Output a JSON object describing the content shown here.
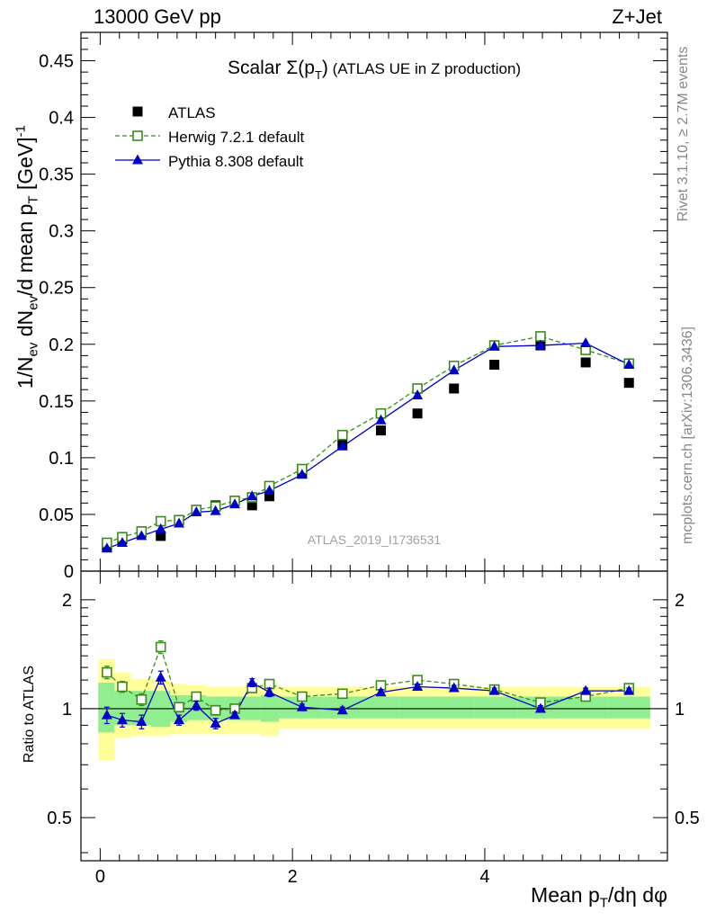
{
  "header": {
    "left": "13000 GeV pp",
    "right": "Z+Jet"
  },
  "side_labels": {
    "rivet": "Rivet 3.1.10, ≥ 2.7M events",
    "mcplots": "mcplots.cern.ch [arXiv:1306.3436]"
  },
  "chart_data": [
    {
      "type": "line",
      "title": "Scalar Σ(p_T) (ATLAS UE in Z production)",
      "watermark": "ATLAS_2019_I1736531",
      "ylabel": "1/N_ev dN_ev/d mean p_T [GeV]^-1",
      "xlim": [
        -0.2,
        5.9
      ],
      "ylim": [
        0,
        0.475
      ],
      "y_ticks": [
        0,
        0.05,
        0.1,
        0.15,
        0.2,
        0.25,
        0.3,
        0.35,
        0.4,
        0.45
      ],
      "y_tick_labels": [
        "0",
        "0.05",
        "0.1",
        "0.15",
        "0.2",
        "0.25",
        "0.3",
        "0.35",
        "0.4",
        "0.45"
      ],
      "legend_position": "top-left",
      "x": [
        0.07,
        0.23,
        0.43,
        0.63,
        0.82,
        1.0,
        1.2,
        1.4,
        1.58,
        1.76,
        2.1,
        2.52,
        2.92,
        3.3,
        3.68,
        4.1,
        4.58,
        5.05,
        5.5
      ],
      "series": [
        {
          "name": "ATLAS",
          "color": "#000000",
          "marker": "filled-square",
          "line": "none",
          "values": [
            0.021,
            0.028,
            0.034,
            0.031,
            0.045,
            0.053,
            0.058,
            0.062,
            0.058,
            0.066,
            0.086,
            0.112,
            0.124,
            0.139,
            0.161,
            0.182,
            0.199,
            0.184,
            0.166
          ]
        },
        {
          "name": "Herwig 7.2.1 default",
          "color": "#3a8a1f",
          "marker": "open-square",
          "line": "dashed",
          "values": [
            0.025,
            0.03,
            0.035,
            0.044,
            0.045,
            0.054,
            0.057,
            0.062,
            0.065,
            0.075,
            0.09,
            0.12,
            0.139,
            0.161,
            0.181,
            0.199,
            0.207,
            0.195,
            0.183
          ]
        },
        {
          "name": "Pythia 8.308 default",
          "color": "#0000cc",
          "marker": "filled-triangle",
          "line": "solid",
          "values": [
            0.02,
            0.025,
            0.031,
            0.037,
            0.042,
            0.052,
            0.053,
            0.059,
            0.066,
            0.071,
            0.085,
            0.11,
            0.133,
            0.155,
            0.177,
            0.198,
            0.199,
            0.201,
            0.182
          ]
        }
      ]
    },
    {
      "type": "line",
      "ylabel": "Ratio to ATLAS",
      "xlabel": "Mean p_T/dη dφ",
      "log_y": true,
      "xlim": [
        -0.2,
        5.9
      ],
      "ylim": [
        0.38,
        2.4
      ],
      "y_ticks": [
        0.5,
        1,
        2
      ],
      "y_tick_labels": [
        "0.5",
        "1",
        "2"
      ],
      "x_ticks": [
        0,
        2,
        4
      ],
      "x_tick_labels": [
        "0",
        "2",
        "4"
      ],
      "band_colors": {
        "stat": "#90ee90",
        "total": "#ffff99"
      },
      "x": [
        0.07,
        0.23,
        0.43,
        0.63,
        0.82,
        1.0,
        1.2,
        1.4,
        1.58,
        1.76,
        2.1,
        2.52,
        2.92,
        3.3,
        3.68,
        4.1,
        4.58,
        5.05,
        5.5
      ],
      "bin_edges": [
        -0.02,
        0.15,
        0.32,
        0.53,
        0.73,
        0.91,
        1.1,
        1.3,
        1.49,
        1.67,
        1.86,
        2.31,
        2.72,
        3.11,
        3.49,
        3.89,
        4.34,
        4.81,
        5.28,
        5.72
      ],
      "stat_band": {
        "lo": [
          0.86,
          0.9,
          0.9,
          0.89,
          0.92,
          0.93,
          0.93,
          0.93,
          0.93,
          0.92,
          0.94,
          0.94,
          0.94,
          0.94,
          0.94,
          0.94,
          0.94,
          0.94,
          0.94
        ],
        "hi": [
          1.18,
          1.12,
          1.12,
          1.12,
          1.09,
          1.09,
          1.08,
          1.08,
          1.08,
          1.09,
          1.08,
          1.08,
          1.08,
          1.08,
          1.08,
          1.08,
          1.08,
          1.08,
          1.08
        ]
      },
      "total_band": {
        "lo": [
          0.72,
          0.83,
          0.84,
          0.84,
          0.85,
          0.85,
          0.85,
          0.85,
          0.85,
          0.84,
          0.88,
          0.88,
          0.88,
          0.88,
          0.88,
          0.88,
          0.88,
          0.88,
          0.88
        ],
        "hi": [
          1.37,
          1.26,
          1.21,
          1.2,
          1.17,
          1.16,
          1.15,
          1.15,
          1.16,
          1.17,
          1.15,
          1.15,
          1.15,
          1.15,
          1.15,
          1.15,
          1.15,
          1.15,
          1.15
        ]
      },
      "series": [
        {
          "name": "Herwig 7.2.1 default",
          "color": "#3a8a1f",
          "marker": "open-square",
          "line": "dashed",
          "values": [
            1.26,
            1.15,
            1.06,
            1.48,
            1.01,
            1.08,
            0.99,
            1.0,
            1.14,
            1.17,
            1.08,
            1.1,
            1.16,
            1.2,
            1.17,
            1.13,
            1.04,
            1.08,
            1.14
          ],
          "errors": [
            0.05,
            0.04,
            0.04,
            0.06,
            0.03,
            0.03,
            0.03,
            0.02,
            0.03,
            0.03,
            0.02,
            0.02,
            0.02,
            0.02,
            0.02,
            0.02,
            0.02,
            0.02,
            0.02
          ]
        },
        {
          "name": "Pythia 8.308 default",
          "color": "#0000cc",
          "marker": "filled-triangle",
          "line": "solid",
          "values": [
            0.96,
            0.93,
            0.92,
            1.22,
            0.93,
            1.02,
            0.91,
            0.96,
            1.18,
            1.11,
            1.01,
            0.99,
            1.11,
            1.15,
            1.14,
            1.12,
            1.0,
            1.12,
            1.12
          ],
          "errors": [
            0.05,
            0.04,
            0.04,
            0.05,
            0.03,
            0.03,
            0.03,
            0.02,
            0.03,
            0.03,
            0.02,
            0.02,
            0.02,
            0.02,
            0.02,
            0.02,
            0.02,
            0.02,
            0.02
          ]
        }
      ]
    }
  ]
}
